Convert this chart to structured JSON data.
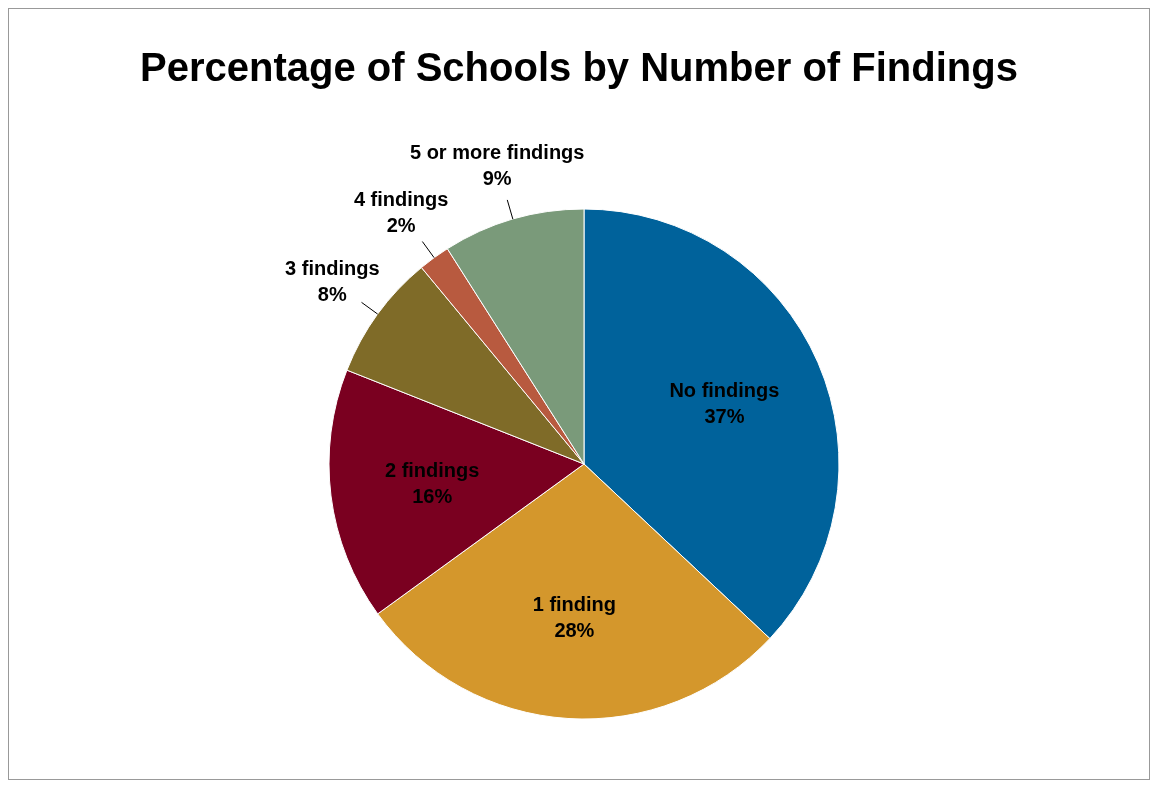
{
  "chart_data": {
    "type": "pie",
    "title": "Percentage of Schools by Number of Findings",
    "categories": [
      "No findings",
      "1 finding",
      "2 findings",
      "3 findings",
      "4 findings",
      "5 or more findings"
    ],
    "values": [
      37,
      28,
      16,
      8,
      2,
      9
    ],
    "value_labels": [
      "37%",
      "28%",
      "16%",
      "8%",
      "2%",
      "9%"
    ],
    "colors": [
      "#00629b",
      "#d4972c",
      "#7a0020",
      "#7f6b28",
      "#b85a3f",
      "#7a9a7a"
    ]
  }
}
